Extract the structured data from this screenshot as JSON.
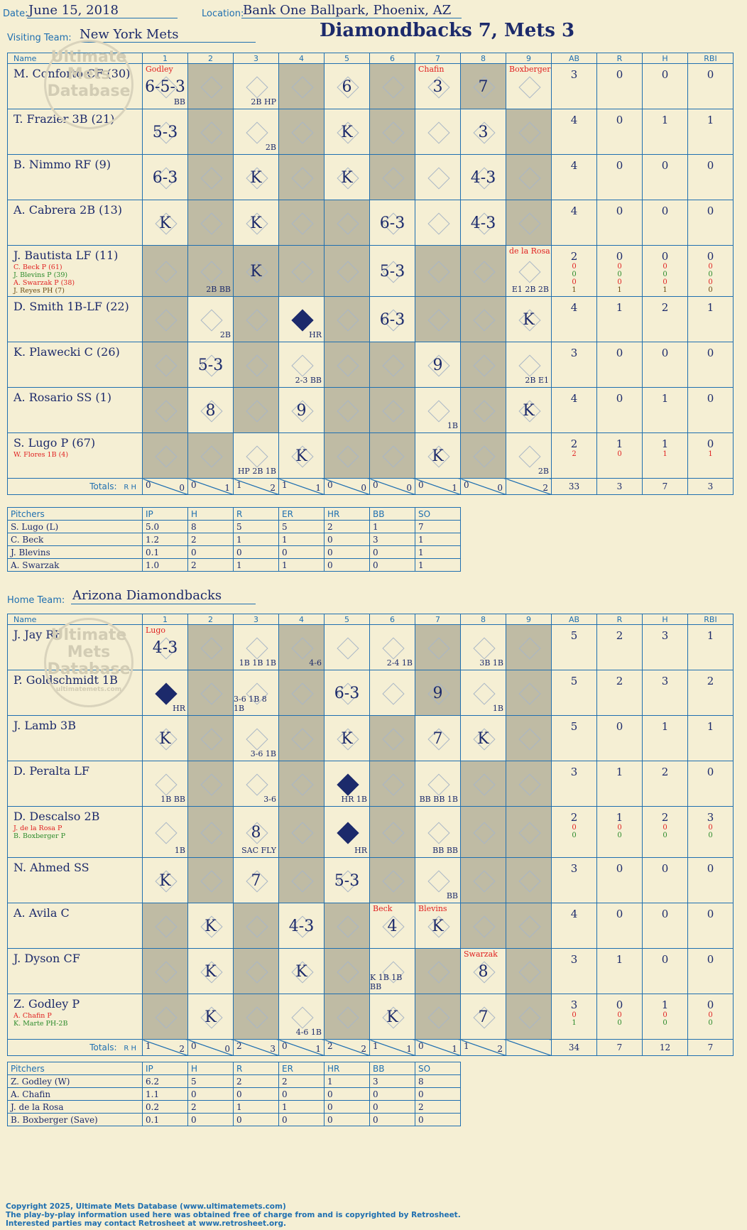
{
  "header": {
    "date_label": "Date:",
    "date": "June 15, 2018",
    "location_label": "Location:",
    "location": "Bank One Ballpark, Phoenix, AZ",
    "visiting_label": "Visiting Team:",
    "visiting_team": "New York Mets",
    "title": "Diamondbacks 7, Mets 3",
    "home_label": "Home Team:",
    "home_team": "Arizona Diamondbacks"
  },
  "columns": {
    "name": "Name",
    "innings": [
      "1",
      "2",
      "3",
      "4",
      "5",
      "6",
      "7",
      "8",
      "9"
    ],
    "stats": [
      "AB",
      "R",
      "H",
      "RBI"
    ]
  },
  "watermark": "Ultimate Mets Database",
  "watermark_url": "ultimatemets.com",
  "visitors": [
    {
      "name": "M. Conforto CF (30)",
      "subs": [],
      "ab": "3",
      "r": "0",
      "h": "0",
      "rbi": "0",
      "plays": {
        "1": "6-5-3",
        "5": "6",
        "7": "3",
        "8": "7"
      },
      "marks": {
        "1": "BB",
        "3": "2B HP"
      },
      "notes": {
        "1": "Godley",
        "7": "Chafin",
        "9": "Boxberger"
      }
    },
    {
      "name": "T. Frazier 3B (21)",
      "subs": [],
      "ab": "4",
      "r": "0",
      "h": "1",
      "rbi": "1",
      "plays": {
        "1": "5-3",
        "5": "K",
        "8": "3"
      },
      "marks": {
        "3": "2B"
      },
      "notes": {}
    },
    {
      "name": "B. Nimmo RF (9)",
      "subs": [],
      "ab": "4",
      "r": "0",
      "h": "0",
      "rbi": "0",
      "plays": {
        "1": "6-3",
        "3": "K",
        "5": "K",
        "8": "4-3"
      },
      "marks": {},
      "notes": {}
    },
    {
      "name": "A. Cabrera 2B (13)",
      "subs": [],
      "ab": "4",
      "r": "0",
      "h": "0",
      "rbi": "0",
      "plays": {
        "1": "K",
        "3": "K",
        "6": "6-3",
        "8": "4-3"
      },
      "marks": {},
      "notes": {}
    },
    {
      "name": "J. Bautista LF (11)",
      "subs": [
        "C. Beck P (61)",
        "J. Blevins P (39)",
        "A. Swarzak P (38)",
        "J. Reyes PH (7)"
      ],
      "ab": "2",
      "r": "0",
      "h": "0",
      "rbi": "0",
      "subs_stats": [
        [
          "0",
          "0",
          "0",
          "0"
        ],
        [
          "0",
          "0",
          "0",
          "0"
        ],
        [
          "0",
          "0",
          "0",
          "0"
        ],
        [
          "1",
          "1",
          "1",
          "0"
        ]
      ],
      "plays": {
        "3": "K",
        "6": "5-3"
      },
      "marks": {
        "2": "2B BB",
        "9": "E1 2B 2B"
      },
      "notes": {
        "9": "de la Rosa"
      }
    },
    {
      "name": "D. Smith 1B-LF (22)",
      "subs": [],
      "ab": "4",
      "r": "1",
      "h": "2",
      "rbi": "1",
      "plays": {
        "6": "6-3",
        "9": "K"
      },
      "marks": {
        "2": "2B",
        "4": "HR"
      },
      "notes": {}
    },
    {
      "name": "K. Plawecki C (26)",
      "subs": [],
      "ab": "3",
      "r": "0",
      "h": "0",
      "rbi": "0",
      "plays": {
        "2": "5-3",
        "7": "9"
      },
      "marks": {
        "4": "2-3 BB",
        "9": "2B E1"
      },
      "notes": {}
    },
    {
      "name": "A. Rosario SS (1)",
      "subs": [],
      "ab": "4",
      "r": "0",
      "h": "1",
      "rbi": "0",
      "plays": {
        "2": "8",
        "4": "9",
        "9": "K"
      },
      "marks": {
        "7": "1B"
      },
      "notes": {}
    },
    {
      "name": "S. Lugo P (67)",
      "subs": [
        "W. Flores 1B (4)"
      ],
      "ab": "2",
      "r": "1",
      "h": "1",
      "rbi": "0",
      "subs_stats": [
        [
          "2",
          "0",
          "1",
          "1"
        ]
      ],
      "plays": {
        "4": "K",
        "7": "K"
      },
      "marks": {
        "3": "HP 2B 1B",
        "9": "2B"
      },
      "notes": {}
    }
  ],
  "visitor_totals": {
    "label": "Totals:",
    "rh": "R H",
    "innings": [
      [
        "0",
        "0"
      ],
      [
        "0",
        "1"
      ],
      [
        "1",
        "2"
      ],
      [
        "1",
        "1"
      ],
      [
        "0",
        "0"
      ],
      [
        "0",
        "0"
      ],
      [
        "0",
        "1"
      ],
      [
        "0",
        "0"
      ],
      [
        "",
        "2"
      ]
    ],
    "ab": "33",
    "r": "3",
    "h": "7",
    "rbi": "3"
  },
  "visitor_pitchers": {
    "headers": [
      "Pitchers",
      "IP",
      "H",
      "R",
      "ER",
      "HR",
      "BB",
      "SO"
    ],
    "rows": [
      [
        "S. Lugo (L)",
        "5.0",
        "8",
        "5",
        "5",
        "2",
        "1",
        "7"
      ],
      [
        "C. Beck",
        "1.2",
        "2",
        "1",
        "1",
        "0",
        "3",
        "1"
      ],
      [
        "J. Blevins",
        "0.1",
        "0",
        "0",
        "0",
        "0",
        "0",
        "1"
      ],
      [
        "A. Swarzak",
        "1.0",
        "2",
        "1",
        "1",
        "0",
        "0",
        "1"
      ]
    ]
  },
  "home": [
    {
      "name": "J. Jay RF",
      "subs": [],
      "ab": "5",
      "r": "2",
      "h": "3",
      "rbi": "1",
      "plays": {
        "1": "4-3"
      },
      "marks": {
        "3": "1B 1B 1B",
        "4": "4-6",
        "6": "2-4 1B",
        "8": "3B 1B"
      },
      "notes": {
        "1": "Lugo"
      }
    },
    {
      "name": "P. Goldschmidt 1B",
      "subs": [],
      "ab": "5",
      "r": "2",
      "h": "3",
      "rbi": "2",
      "plays": {
        "5": "6-3",
        "7": "9"
      },
      "marks": {
        "1": "HR",
        "3": "3-6 1B 8 1B",
        "8": "1B"
      },
      "notes": {}
    },
    {
      "name": "J. Lamb 3B",
      "subs": [],
      "ab": "5",
      "r": "0",
      "h": "1",
      "rbi": "1",
      "plays": {
        "1": "K",
        "5": "K",
        "7": "7",
        "8": "K"
      },
      "marks": {
        "3": "3-6 1B"
      },
      "notes": {}
    },
    {
      "name": "D. Peralta LF",
      "subs": [],
      "ab": "3",
      "r": "1",
      "h": "2",
      "rbi": "0",
      "plays": {},
      "marks": {
        "1": "1B BB",
        "3": "3-6",
        "5": "HR 1B",
        "7": "BB BB 1B"
      },
      "notes": {}
    },
    {
      "name": "D. Descalso 2B",
      "subs": [
        "J. de la Rosa P",
        "B. Boxberger P"
      ],
      "ab": "2",
      "r": "1",
      "h": "2",
      "rbi": "3",
      "subs_stats": [
        [
          "0",
          "0",
          "0",
          "0"
        ],
        [
          "0",
          "0",
          "0",
          "0"
        ]
      ],
      "plays": {
        "3": "8"
      },
      "marks": {
        "1": "1B",
        "3": "SAC FLY",
        "5": "HR",
        "7": "BB BB"
      },
      "notes": {}
    },
    {
      "name": "N. Ahmed SS",
      "subs": [],
      "ab": "3",
      "r": "0",
      "h": "0",
      "rbi": "0",
      "plays": {
        "1": "K",
        "3": "7",
        "5": "5-3"
      },
      "marks": {
        "7": "BB"
      },
      "notes": {}
    },
    {
      "name": "A. Avila C",
      "subs": [],
      "ab": "4",
      "r": "0",
      "h": "0",
      "rbi": "0",
      "plays": {
        "2": "K",
        "4": "4-3",
        "6": "4",
        "7": "K"
      },
      "marks": {},
      "notes": {
        "6": "Beck",
        "7": "Blevins"
      }
    },
    {
      "name": "J. Dyson CF",
      "subs": [],
      "ab": "3",
      "r": "1",
      "h": "0",
      "rbi": "0",
      "plays": {
        "2": "K",
        "4": "K",
        "8": "8"
      },
      "marks": {
        "6": "K 1B 1B BB"
      },
      "notes": {
        "8": "Swarzak"
      }
    },
    {
      "name": "Z. Godley P",
      "subs": [
        "A. Chafin P",
        "K. Marte PH-2B"
      ],
      "ab": "3",
      "r": "0",
      "h": "1",
      "rbi": "0",
      "subs_stats": [
        [
          "0",
          "0",
          "0",
          "0"
        ],
        [
          "1",
          "0",
          "0",
          "0"
        ]
      ],
      "plays": {
        "2": "K",
        "6": "K",
        "8": "7"
      },
      "marks": {
        "4": "4-6 1B"
      },
      "notes": {}
    }
  ],
  "home_totals": {
    "label": "Totals:",
    "rh": "R H",
    "innings": [
      [
        "1",
        "2"
      ],
      [
        "0",
        "0"
      ],
      [
        "2",
        "3"
      ],
      [
        "0",
        "1"
      ],
      [
        "2",
        "2"
      ],
      [
        "1",
        "1"
      ],
      [
        "0",
        "1"
      ],
      [
        "1",
        "2"
      ],
      [
        "",
        ""
      ]
    ],
    "ab": "34",
    "r": "7",
    "h": "12",
    "rbi": "7"
  },
  "home_pitchers": {
    "headers": [
      "Pitchers",
      "IP",
      "H",
      "R",
      "ER",
      "HR",
      "BB",
      "SO"
    ],
    "rows": [
      [
        "Z. Godley (W)",
        "6.2",
        "5",
        "2",
        "2",
        "1",
        "3",
        "8"
      ],
      [
        "A. Chafin",
        "1.1",
        "0",
        "0",
        "0",
        "0",
        "0",
        "0"
      ],
      [
        "J. de la Rosa",
        "0.2",
        "2",
        "1",
        "1",
        "0",
        "0",
        "2"
      ],
      [
        "B. Boxberger (Save)",
        "0.1",
        "0",
        "0",
        "0",
        "0",
        "0",
        "0"
      ]
    ]
  },
  "footer": {
    "line1": "Copyright 2025, Ultimate Mets Database (www.ultimatemets.com)",
    "line2": "The play-by-play information used here was obtained free of charge from and is copyrighted by Retrosheet.",
    "line3": "Interested parties may contact Retrosheet at www.retrosheet.org."
  },
  "colors": {
    "ink": "#1c2a6b",
    "rule": "#1f6fb0",
    "paper": "#f5efd4",
    "shade": "#bfbba4",
    "note": "#e02020"
  }
}
